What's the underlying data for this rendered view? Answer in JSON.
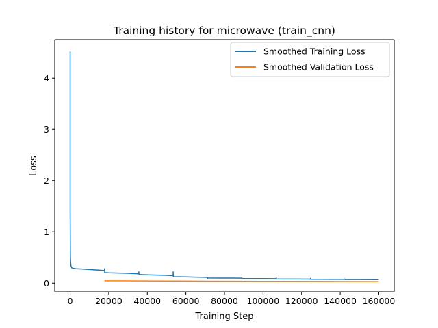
{
  "chart_data": {
    "type": "line",
    "title": "Training history for microwave (train_cnn)",
    "xlabel": "Training Step",
    "ylabel": "Loss",
    "xlim": [
      -8000,
      168000
    ],
    "ylim": [
      -0.17,
      4.75
    ],
    "xticks": [
      0,
      20000,
      40000,
      60000,
      80000,
      100000,
      120000,
      140000,
      160000
    ],
    "xtick_labels": [
      "0",
      "20000",
      "40000",
      "60000",
      "80000",
      "100000",
      "120000",
      "140000",
      "160000"
    ],
    "yticks": [
      0,
      1,
      2,
      3,
      4
    ],
    "ytick_labels": [
      "0",
      "1",
      "2",
      "3",
      "4"
    ],
    "grid": false,
    "legend_position": "upper right",
    "series": [
      {
        "name": "Smoothed Training Loss",
        "color": "#1f77b4",
        "x": [
          0,
          0,
          100,
          200,
          400,
          800,
          1500,
          3000,
          6000,
          10000,
          14000,
          17800,
          17800,
          17900,
          18000,
          20000,
          25000,
          30000,
          35600,
          35600,
          35700,
          36000,
          40000,
          45000,
          50000,
          53400,
          53400,
          53500,
          54000,
          60000,
          65000,
          71200,
          71200,
          71300,
          72000,
          78000,
          85000,
          89000,
          89000,
          89100,
          92000,
          100000,
          106800,
          106800,
          106900,
          110000,
          118000,
          124600,
          124600,
          124700,
          130000,
          138000,
          142400,
          142400,
          142500,
          150000,
          160000
        ],
        "y": [
          4.52,
          1.4,
          0.55,
          0.42,
          0.34,
          0.3,
          0.29,
          0.28,
          0.275,
          0.265,
          0.255,
          0.245,
          0.28,
          0.21,
          0.205,
          0.2,
          0.195,
          0.19,
          0.18,
          0.22,
          0.17,
          0.165,
          0.16,
          0.155,
          0.15,
          0.145,
          0.22,
          0.125,
          0.123,
          0.12,
          0.115,
          0.11,
          0.09,
          0.1,
          0.098,
          0.097,
          0.096,
          0.095,
          0.11,
          0.088,
          0.087,
          0.086,
          0.085,
          0.11,
          0.08,
          0.079,
          0.078,
          0.077,
          0.09,
          0.074,
          0.073,
          0.072,
          0.071,
          0.08,
          0.069,
          0.068,
          0.066
        ]
      },
      {
        "name": "Smoothed Validation Loss",
        "color": "#ff7f0e",
        "x": [
          17800,
          30000,
          50000,
          70000,
          90000,
          110000,
          130000,
          160000
        ],
        "y": [
          0.045,
          0.043,
          0.04,
          0.037,
          0.035,
          0.033,
          0.031,
          0.029
        ]
      }
    ]
  }
}
